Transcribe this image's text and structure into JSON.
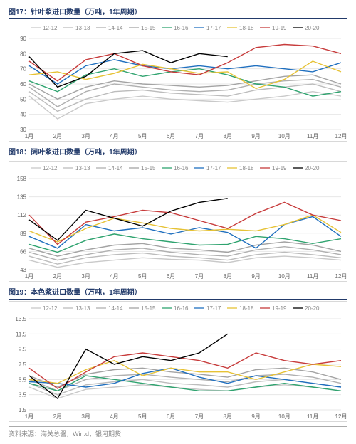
{
  "source_text": "资料来源：海关总署，Win.d，银河期货",
  "shared": {
    "x_categories": [
      "1月",
      "2月",
      "3月",
      "4月",
      "5月",
      "6月",
      "7月",
      "8月",
      "9月",
      "10月",
      "11月",
      "12月"
    ],
    "legend_labels": [
      "12-12",
      "13-13",
      "14-14",
      "15-15",
      "16-16",
      "17-17",
      "18-18",
      "19-19",
      "20-20"
    ],
    "series_colors": [
      "#c9c9c9",
      "#bcbcbc",
      "#b0b0b0",
      "#a3a3a3",
      "#2fa36f",
      "#1f6fbf",
      "#e6c235",
      "#c73b3b",
      "#000000"
    ],
    "grid_color": "#e7e7e7",
    "background_color": "#ffffff",
    "axis_fontsize": 8,
    "title_color": "#223a6a",
    "title_fontsize": 10
  },
  "charts": [
    {
      "title": "图17：针叶浆进口数量（万吨，1年周期）",
      "type": "line",
      "ylim": [
        30,
        90
      ],
      "ytick_step": 10,
      "series": [
        {
          "name": "12-12",
          "color": "#c9c9c9",
          "values": [
            52,
            37,
            47,
            50,
            52,
            50,
            49,
            48,
            50,
            52,
            55,
            52
          ]
        },
        {
          "name": "13-13",
          "color": "#bcbcbc",
          "values": [
            55,
            42,
            50,
            55,
            56,
            54,
            53,
            52,
            56,
            58,
            60,
            55
          ]
        },
        {
          "name": "14-14",
          "color": "#b0b0b0",
          "values": [
            58,
            45,
            55,
            60,
            58,
            56,
            55,
            56,
            60,
            62,
            63,
            58
          ]
        },
        {
          "name": "15-15",
          "color": "#a3a3a3",
          "values": [
            60,
            50,
            58,
            62,
            60,
            59,
            58,
            59,
            62,
            65,
            66,
            60
          ]
        },
        {
          "name": "16-16",
          "color": "#2fa36f",
          "values": [
            62,
            55,
            66,
            70,
            65,
            68,
            70,
            66,
            60,
            58,
            52,
            55
          ]
        },
        {
          "name": "17-17",
          "color": "#1f6fbf",
          "values": [
            72,
            60,
            72,
            76,
            72,
            70,
            72,
            70,
            72,
            70,
            68,
            74
          ]
        },
        {
          "name": "18-18",
          "color": "#e6c235",
          "values": [
            66,
            68,
            63,
            67,
            73,
            70,
            67,
            68,
            57,
            63,
            75,
            68
          ]
        },
        {
          "name": "19-19",
          "color": "#c73b3b",
          "values": [
            75,
            62,
            76,
            80,
            72,
            68,
            66,
            74,
            84,
            86,
            85,
            80
          ]
        },
        {
          "name": "20-20",
          "color": "#000000",
          "values": [
            78,
            58,
            65,
            80,
            82,
            74,
            80,
            78,
            null,
            null,
            null,
            null
          ]
        }
      ]
    },
    {
      "title": "图18：阔叶浆进口数量（万吨，1年周期）",
      "type": "line",
      "ylim": [
        43,
        158
      ],
      "ytick_step": 23,
      "series": [
        {
          "name": "12-12",
          "color": "#c9c9c9",
          "values": [
            55,
            46,
            52,
            55,
            58,
            56,
            55,
            52,
            58,
            60,
            58,
            55
          ]
        },
        {
          "name": "13-13",
          "color": "#bcbcbc",
          "values": [
            60,
            50,
            58,
            62,
            64,
            60,
            58,
            55,
            62,
            65,
            62,
            58
          ]
        },
        {
          "name": "14-14",
          "color": "#b0b0b0",
          "values": [
            65,
            55,
            62,
            68,
            70,
            65,
            62,
            60,
            68,
            72,
            68,
            62
          ]
        },
        {
          "name": "15-15",
          "color": "#a3a3a3",
          "values": [
            70,
            60,
            68,
            74,
            76,
            70,
            68,
            65,
            74,
            78,
            74,
            66
          ]
        },
        {
          "name": "16-16",
          "color": "#2fa36f",
          "values": [
            75,
            65,
            80,
            88,
            82,
            78,
            74,
            75,
            85,
            82,
            76,
            82
          ]
        },
        {
          "name": "17-17",
          "color": "#1f6fbf",
          "values": [
            85,
            70,
            100,
            92,
            96,
            88,
            96,
            90,
            70,
            100,
            110,
            85
          ]
        },
        {
          "name": "18-18",
          "color": "#e6c235",
          "values": [
            92,
            78,
            95,
            108,
            102,
            95,
            92,
            94,
            92,
            100,
            112,
            90
          ]
        },
        {
          "name": "19-19",
          "color": "#c73b3b",
          "values": [
            112,
            75,
            103,
            110,
            118,
            115,
            105,
            95,
            114,
            128,
            112,
            105
          ]
        },
        {
          "name": "20-20",
          "color": "#000000",
          "values": [
            106,
            80,
            118,
            108,
            98,
            117,
            128,
            133,
            null,
            null,
            null,
            null
          ]
        }
      ]
    },
    {
      "title": "图19：本色浆进口数量（万吨，1年周期）",
      "type": "line",
      "ylim": [
        1.5,
        13.5
      ],
      "ytick_step": 2,
      "series": [
        {
          "name": "12-12",
          "color": "#c9c9c9",
          "values": [
            4.5,
            3.0,
            4.2,
            4.5,
            4.8,
            4.5,
            4.2,
            4.0,
            4.5,
            4.8,
            4.5,
            4.0
          ]
        },
        {
          "name": "13-13",
          "color": "#bcbcbc",
          "values": [
            5.0,
            3.5,
            4.8,
            5.2,
            5.5,
            5.0,
            4.8,
            4.5,
            5.2,
            5.5,
            5.0,
            4.5
          ]
        },
        {
          "name": "14-14",
          "color": "#b0b0b0",
          "values": [
            5.5,
            4.0,
            5.5,
            6.0,
            6.2,
            5.8,
            5.5,
            5.2,
            6.0,
            6.2,
            5.8,
            5.0
          ]
        },
        {
          "name": "15-15",
          "color": "#a3a3a3",
          "values": [
            6.0,
            4.5,
            6.2,
            6.8,
            7.0,
            6.5,
            6.2,
            5.8,
            6.8,
            7.0,
            6.5,
            5.5
          ]
        },
        {
          "name": "16-16",
          "color": "#2fa36f",
          "values": [
            5.0,
            4.0,
            6.0,
            5.5,
            5.0,
            4.5,
            4.0,
            4.0,
            4.5,
            5.0,
            4.5,
            4.0
          ]
        },
        {
          "name": "17-17",
          "color": "#1f6fbf",
          "values": [
            5.2,
            5.0,
            4.5,
            5.0,
            6.3,
            7.0,
            5.8,
            5.0,
            6.0,
            5.5,
            5.0,
            4.5
          ]
        },
        {
          "name": "18-18",
          "color": "#e6c235",
          "values": [
            5.5,
            5.0,
            6.8,
            8.0,
            6.0,
            7.0,
            6.5,
            6.5,
            5.5,
            6.5,
            7.5,
            7.2
          ]
        },
        {
          "name": "19-19",
          "color": "#c73b3b",
          "values": [
            7.0,
            4.3,
            6.5,
            8.5,
            9.0,
            8.5,
            8.0,
            7.0,
            9.0,
            8.0,
            7.5,
            8.0
          ]
        },
        {
          "name": "20-20",
          "color": "#000000",
          "values": [
            6.0,
            3.0,
            9.5,
            7.5,
            8.5,
            8.0,
            9.0,
            11.5,
            null,
            null,
            null,
            null
          ]
        }
      ]
    }
  ]
}
